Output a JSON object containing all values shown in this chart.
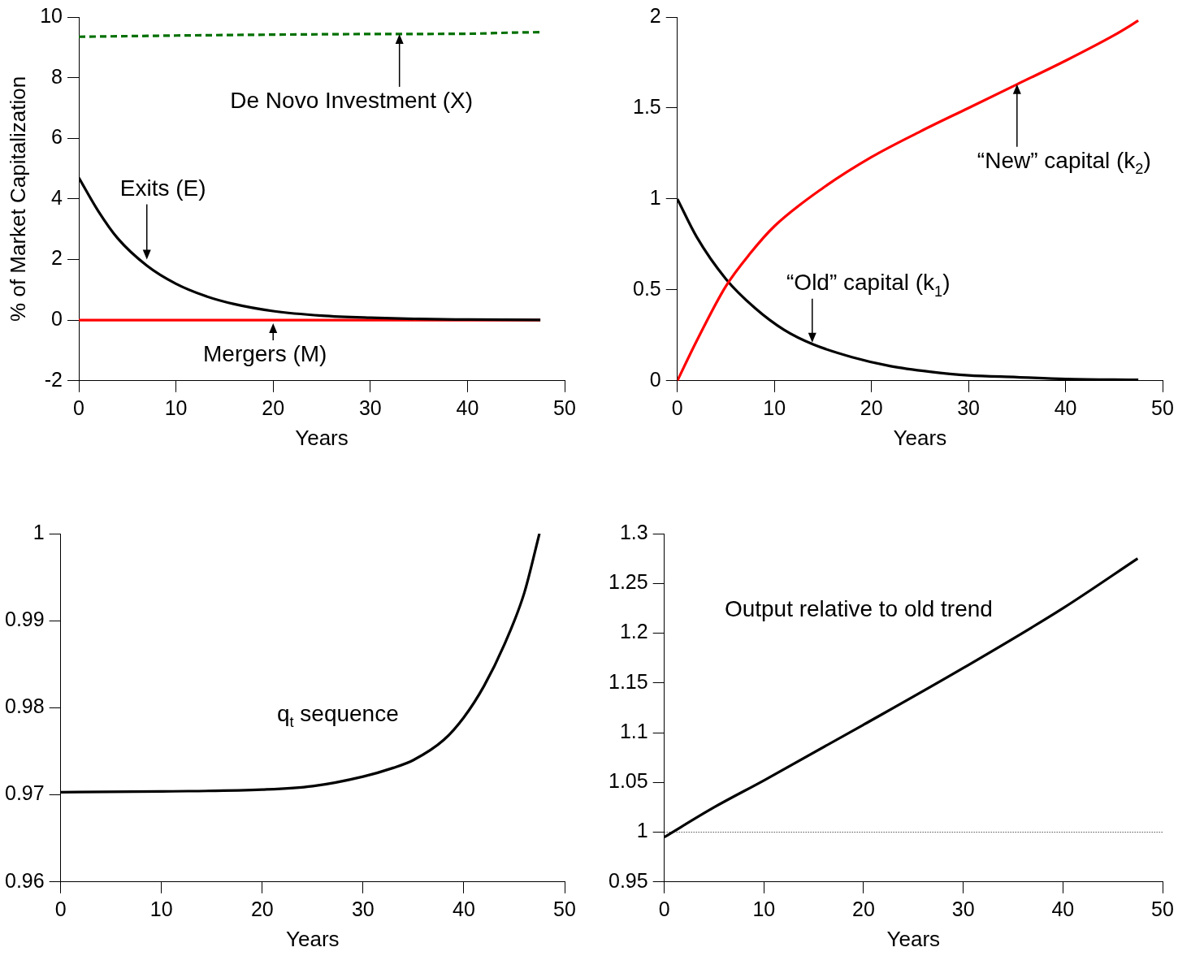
{
  "chart_data": [
    {
      "type": "line",
      "xlabel": "Years",
      "ylabel": "% of Market Capitalization",
      "xlim": [
        0,
        50
      ],
      "xticks": [
        0,
        10,
        20,
        30,
        40,
        50
      ],
      "ylim": [
        -2,
        10
      ],
      "yticks": [
        -2,
        0,
        2,
        4,
        6,
        8,
        10
      ],
      "grid": false,
      "legend": false,
      "marker": "none",
      "series": [
        {
          "color": "#007000",
          "line_style": "dashed",
          "x": [
            0,
            5,
            10,
            20,
            30,
            40,
            45,
            47.5
          ],
          "values": [
            9.35,
            9.37,
            9.39,
            9.42,
            9.44,
            9.45,
            9.49,
            9.5
          ]
        },
        {
          "color": "#000000",
          "x": [
            0,
            2,
            4,
            7,
            10,
            13,
            16,
            20,
            25,
            30,
            35,
            40,
            47.5
          ],
          "values": [
            4.7,
            3.6,
            2.7,
            1.8,
            1.2,
            0.8,
            0.53,
            0.3,
            0.15,
            0.08,
            0.04,
            0.02,
            0.01
          ]
        },
        {
          "color": "#ff0000",
          "x": [
            0,
            47.5
          ],
          "values": [
            0,
            0
          ]
        }
      ],
      "annotations": [
        {
          "text": "De Novo Investment (X)",
          "x": 33,
          "y": 9.44
        },
        {
          "text": "Exits (E)",
          "x": 7,
          "y": 2
        },
        {
          "text": "Mergers (M)",
          "x": 20,
          "y": -0.1
        }
      ]
    },
    {
      "type": "line",
      "xlabel": "Years",
      "xlim": [
        0,
        50
      ],
      "xticks": [
        0,
        10,
        20,
        30,
        40,
        50
      ],
      "ylim": [
        0,
        2
      ],
      "yticks": [
        0,
        0.5,
        1,
        1.5,
        2
      ],
      "grid": false,
      "legend": false,
      "marker": "none",
      "series": [
        {
          "color": "#ff0000",
          "x": [
            0,
            2,
            5,
            7.5,
            10,
            15,
            20,
            25,
            30,
            35,
            40,
            45,
            47.5
          ],
          "values": [
            0,
            0.22,
            0.52,
            0.7,
            0.85,
            1.06,
            1.23,
            1.37,
            1.5,
            1.63,
            1.76,
            1.9,
            1.98
          ]
        },
        {
          "color": "#000000",
          "x": [
            0,
            2,
            5,
            8,
            11,
            14,
            18,
            22,
            26,
            30,
            35,
            40,
            47.5
          ],
          "values": [
            1,
            0.79,
            0.56,
            0.4,
            0.28,
            0.2,
            0.13,
            0.08,
            0.05,
            0.03,
            0.02,
            0.01,
            0.005
          ]
        }
      ],
      "annotations": [
        {
          "text": "“New” capital (k$_{2}$)",
          "x": 35,
          "y": 1.63
        },
        {
          "text": "“Old” capital (k$_{1}$)",
          "x": 13.9,
          "y": 0.21
        }
      ]
    },
    {
      "type": "line",
      "xlabel": "Years",
      "xlim": [
        0,
        50
      ],
      "xticks": [
        0,
        10,
        20,
        30,
        40,
        50
      ],
      "ylim": [
        0.96,
        1
      ],
      "yticks": [
        0.96,
        0.97,
        0.98,
        0.99,
        1
      ],
      "grid": false,
      "legend": false,
      "marker": "none",
      "series": [
        {
          "color": "#000000",
          "x": [
            0,
            10,
            20,
            25,
            30,
            33,
            35,
            38,
            40,
            42,
            44,
            46,
            47.5
          ],
          "values": [
            0.9703,
            0.9704,
            0.9706,
            0.971,
            0.9721,
            0.9731,
            0.974,
            0.9763,
            0.9789,
            0.9825,
            0.9872,
            0.9932,
            1
          ]
        }
      ],
      "annotations": [
        "q$_{t}$ sequence"
      ]
    },
    {
      "type": "line",
      "xlabel": "Years",
      "xlim": [
        0,
        50
      ],
      "xticks": [
        0,
        10,
        20,
        30,
        40,
        50
      ],
      "ylim": [
        0.95,
        1.3
      ],
      "yticks": [
        0.95,
        1,
        1.05,
        1.1,
        1.15,
        1.2,
        1.25,
        1.3
      ],
      "grid": false,
      "legend": false,
      "marker": "none",
      "series": [
        {
          "color": "#000000",
          "x": [
            0,
            5,
            10,
            20,
            30,
            40,
            47.5
          ],
          "values": [
            0.995,
            1.025,
            1.052,
            1.108,
            1.165,
            1.225,
            1.275
          ]
        }
      ],
      "ref_lines": [
        {
          "axis": "y",
          "value": 1,
          "color": "#000000",
          "line_style": "dotted"
        }
      ],
      "annotations": [
        "Output relative to old trend"
      ]
    }
  ]
}
